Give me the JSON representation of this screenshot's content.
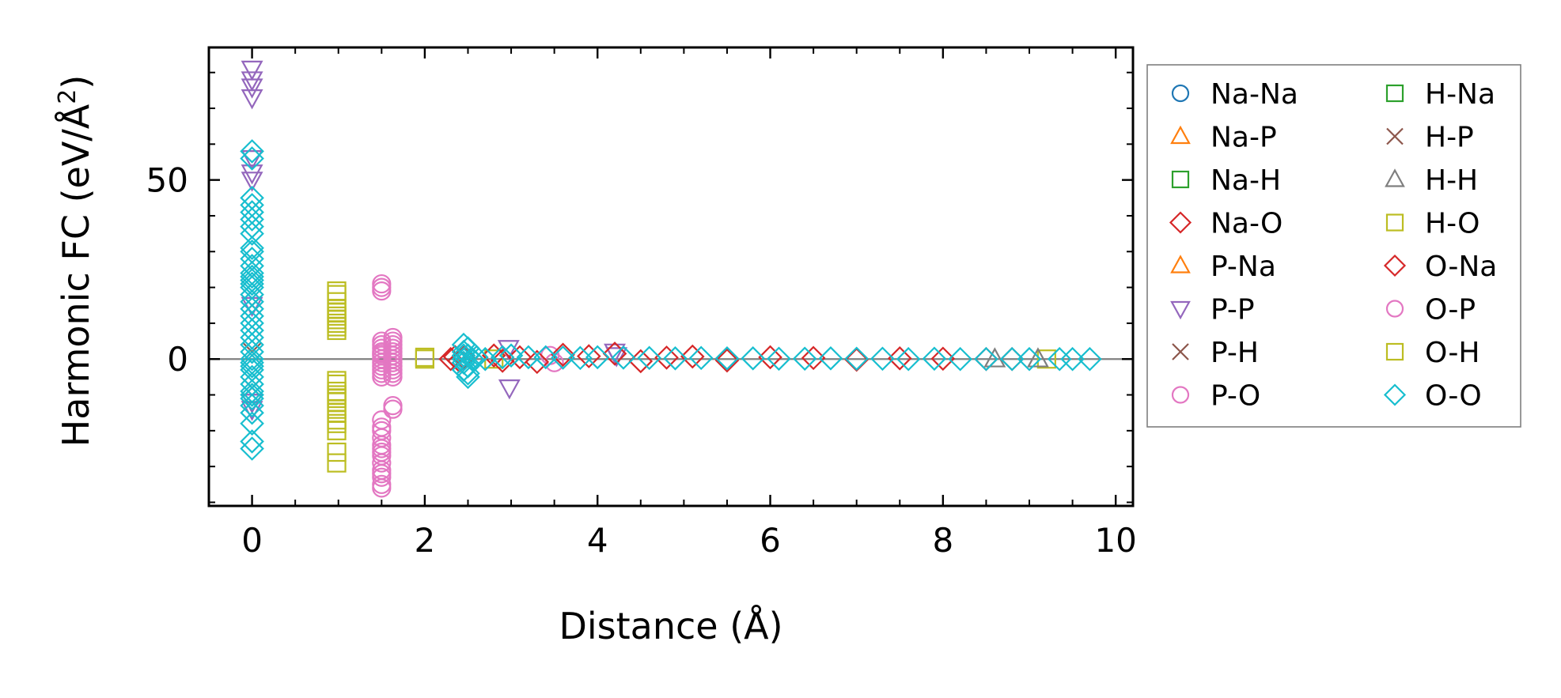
{
  "chart_data": {
    "type": "scatter",
    "xlabel": "Distance (Å)",
    "ylabel_main": "Harmonic FC (eV/Å",
    "ylabel_sup": "2",
    "ylabel_end": ")",
    "xlim": [
      -0.5,
      10.2
    ],
    "ylim": [
      -41,
      87
    ],
    "xticks": [
      0,
      2,
      4,
      6,
      8,
      10
    ],
    "xtick_labels": [
      "0",
      "2",
      "4",
      "6",
      "8",
      "10"
    ],
    "yticks": [
      0,
      50
    ],
    "ytick_labels": [
      "0",
      "50"
    ],
    "zero_line": 0,
    "legend": {
      "placement": "outside-right",
      "ncol": 2,
      "entries": [
        {
          "name": "Na-Na",
          "marker": "circle",
          "color": "#1f77b4"
        },
        {
          "name": "Na-P",
          "marker": "triangle-up",
          "color": "#ff7f0e"
        },
        {
          "name": "Na-H",
          "marker": "square",
          "color": "#2ca02c"
        },
        {
          "name": "Na-O",
          "marker": "diamond",
          "color": "#d62728"
        },
        {
          "name": "P-Na",
          "marker": "triangle-up",
          "color": "#ff7f0e"
        },
        {
          "name": "P-P",
          "marker": "triangle-down",
          "color": "#9467bd"
        },
        {
          "name": "P-H",
          "marker": "x",
          "color": "#8c564b"
        },
        {
          "name": "P-O",
          "marker": "circle",
          "color": "#e377c2"
        },
        {
          "name": "H-Na",
          "marker": "square",
          "color": "#2ca02c"
        },
        {
          "name": "H-P",
          "marker": "x",
          "color": "#8c564b"
        },
        {
          "name": "H-H",
          "marker": "triangle-up",
          "color": "#7f7f7f"
        },
        {
          "name": "H-O",
          "marker": "square",
          "color": "#bcbd22"
        },
        {
          "name": "O-Na",
          "marker": "diamond",
          "color": "#d62728"
        },
        {
          "name": "O-P",
          "marker": "circle",
          "color": "#e377c2"
        },
        {
          "name": "O-H",
          "marker": "square",
          "color": "#bcbd22"
        },
        {
          "name": "O-O",
          "marker": "diamond",
          "color": "#17becf"
        }
      ]
    },
    "series": [
      {
        "name": "P-P",
        "marker": "triangle-down",
        "color": "#9467bd",
        "x": [
          0,
          0,
          0,
          0,
          0,
          0,
          0,
          0,
          0,
          0,
          2.97,
          2.98,
          4.2,
          4.22
        ],
        "y": [
          81,
          78,
          76,
          73,
          56,
          52,
          50,
          15,
          -12,
          -14,
          3,
          -8,
          2,
          1
        ]
      },
      {
        "name": "P-H",
        "marker": "x",
        "color": "#8c564b",
        "x": [
          0,
          0,
          0
        ],
        "y": [
          15,
          2,
          -8
        ]
      },
      {
        "name": "H-O",
        "marker": "square",
        "color": "#bcbd22",
        "x": [
          0.98,
          0.98,
          0.98,
          0.98,
          0.98,
          0.98,
          0.98,
          0.98,
          0.98,
          0.98,
          0.98,
          0.98,
          0.98,
          0.98,
          0.98,
          0.98,
          0.98,
          0.98,
          0.98,
          0.98,
          0.98,
          0.98,
          0.98,
          2.0,
          2.0,
          2.8,
          9.2
        ],
        "y": [
          19,
          18,
          16,
          14,
          13,
          12,
          11,
          10,
          9,
          8,
          -6,
          -7,
          -9,
          -10,
          -11,
          -12,
          -14,
          -15,
          -17,
          -18,
          -20,
          -26,
          -29,
          0,
          0.5,
          0,
          0
        ]
      },
      {
        "name": "O-P",
        "marker": "circle",
        "color": "#e377c2",
        "x": [
          1.5,
          1.5,
          1.5,
          1.5,
          1.5,
          1.5,
          1.5,
          1.5,
          1.5,
          1.5,
          1.5,
          1.5,
          1.5,
          1.5,
          1.5,
          1.5,
          1.5,
          1.5,
          1.5,
          1.5,
          1.5,
          1.5,
          1.5,
          1.5,
          1.5,
          1.5,
          1.5,
          1.5,
          1.5,
          1.63,
          1.63,
          1.63,
          1.63,
          1.63,
          1.63,
          1.63,
          1.63,
          1.63,
          1.63,
          1.63,
          1.63,
          1.63,
          1.63,
          3.45,
          3.5
        ],
        "y": [
          21,
          20,
          19,
          5,
          4,
          3,
          2,
          1,
          0,
          -1,
          -2,
          -3,
          -4,
          -5,
          -17,
          -19,
          -20,
          -22,
          -24,
          -25,
          -26,
          -27,
          -29,
          -31,
          -32,
          -33,
          -35,
          -36,
          1.5,
          6,
          5,
          4,
          3,
          2,
          1,
          0,
          -1,
          -2,
          -3,
          -4,
          -5,
          -13,
          -14,
          1,
          -1
        ]
      },
      {
        "name": "O-Na",
        "marker": "diamond",
        "color": "#d62728",
        "x": [
          2.3,
          2.35,
          2.4,
          2.45,
          2.8,
          2.9,
          3.1,
          3.3,
          3.6,
          3.9,
          4.2,
          4.5,
          4.8,
          5.1,
          5.5,
          6.0,
          6.5,
          7.0,
          7.5,
          8.0,
          8.5,
          8.8
        ],
        "y": [
          0,
          0.6,
          -0.5,
          0.3,
          1,
          -0.5,
          0.5,
          -0.8,
          1.2,
          0.8,
          1.5,
          -0.6,
          0.4,
          0.7,
          -0.4,
          0.5,
          0.3,
          -0.2,
          0.2,
          0.1,
          0,
          0
        ]
      },
      {
        "name": "H-H",
        "marker": "triangle-up",
        "color": "#7f7f7f",
        "x": [
          8.6,
          9.1
        ],
        "y": [
          0,
          0
        ]
      },
      {
        "name": "O-O",
        "marker": "diamond",
        "color": "#17becf",
        "x": [
          0,
          0,
          0,
          0,
          0,
          0,
          0,
          0,
          0,
          0,
          0,
          0,
          0,
          0,
          0,
          0,
          0,
          0,
          0,
          0,
          0,
          0,
          0,
          0,
          0,
          0,
          0,
          0,
          0,
          0,
          0,
          0,
          0,
          0,
          0,
          0,
          0,
          0,
          0,
          0,
          2.45,
          2.45,
          2.45,
          2.45,
          2.45,
          2.45,
          2.5,
          2.5,
          2.5,
          2.5,
          2.5,
          2.55,
          2.6,
          2.7,
          2.9,
          3.0,
          3.2,
          3.4,
          3.6,
          3.8,
          4.0,
          4.3,
          4.6,
          4.9,
          5.2,
          5.5,
          5.8,
          6.1,
          6.4,
          6.7,
          7.0,
          7.3,
          7.6,
          7.9,
          8.2,
          8.5,
          8.8,
          9.0,
          9.35,
          9.5,
          9.7
        ],
        "y": [
          58,
          56,
          45,
          43,
          41,
          39,
          37,
          35,
          31,
          30,
          28,
          26,
          24,
          23,
          22,
          21,
          20,
          18,
          16,
          14,
          12,
          10,
          8,
          6,
          4,
          2,
          0,
          -1,
          -2,
          -3,
          -5,
          -7,
          -9,
          -10,
          -11,
          -13,
          -15,
          -18,
          -23,
          -25,
          4,
          2,
          1,
          0,
          -1,
          -3,
          3,
          1,
          -2,
          -4,
          -5,
          0,
          0.5,
          0,
          0.5,
          1,
          0.5,
          0.5,
          0.4,
          0.3,
          0.5,
          0.4,
          0.3,
          0.2,
          0.3,
          0.2,
          0.2,
          0.1,
          0.1,
          0.2,
          0.1,
          0.1,
          0,
          0.1,
          0,
          0,
          0,
          0,
          0,
          0,
          0
        ]
      }
    ]
  }
}
